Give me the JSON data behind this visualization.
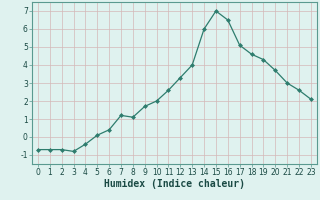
{
  "x": [
    0,
    1,
    2,
    3,
    4,
    5,
    6,
    7,
    8,
    9,
    10,
    11,
    12,
    13,
    14,
    15,
    16,
    17,
    18,
    19,
    20,
    21,
    22,
    23
  ],
  "y": [
    -0.7,
    -0.7,
    -0.7,
    -0.8,
    -0.4,
    0.1,
    0.4,
    1.2,
    1.1,
    1.7,
    2.0,
    2.6,
    3.3,
    4.0,
    6.0,
    7.0,
    6.5,
    5.1,
    4.6,
    4.3,
    3.7,
    3.0,
    2.6,
    2.1
  ],
  "line_color": "#2e7d6e",
  "marker": "D",
  "markersize": 2.0,
  "linewidth": 0.9,
  "bg_color": "#dff2ef",
  "grid_color": "#c8dbd8",
  "xlabel": "Humidex (Indice chaleur)",
  "xlim": [
    -0.5,
    23.5
  ],
  "ylim": [
    -1.5,
    7.5
  ],
  "yticks": [
    -1,
    0,
    1,
    2,
    3,
    4,
    5,
    6,
    7
  ],
  "xticks": [
    0,
    1,
    2,
    3,
    4,
    5,
    6,
    7,
    8,
    9,
    10,
    11,
    12,
    13,
    14,
    15,
    16,
    17,
    18,
    19,
    20,
    21,
    22,
    23
  ],
  "tick_fontsize": 5.5,
  "xlabel_fontsize": 7.0,
  "spine_color": "#5a9a90"
}
